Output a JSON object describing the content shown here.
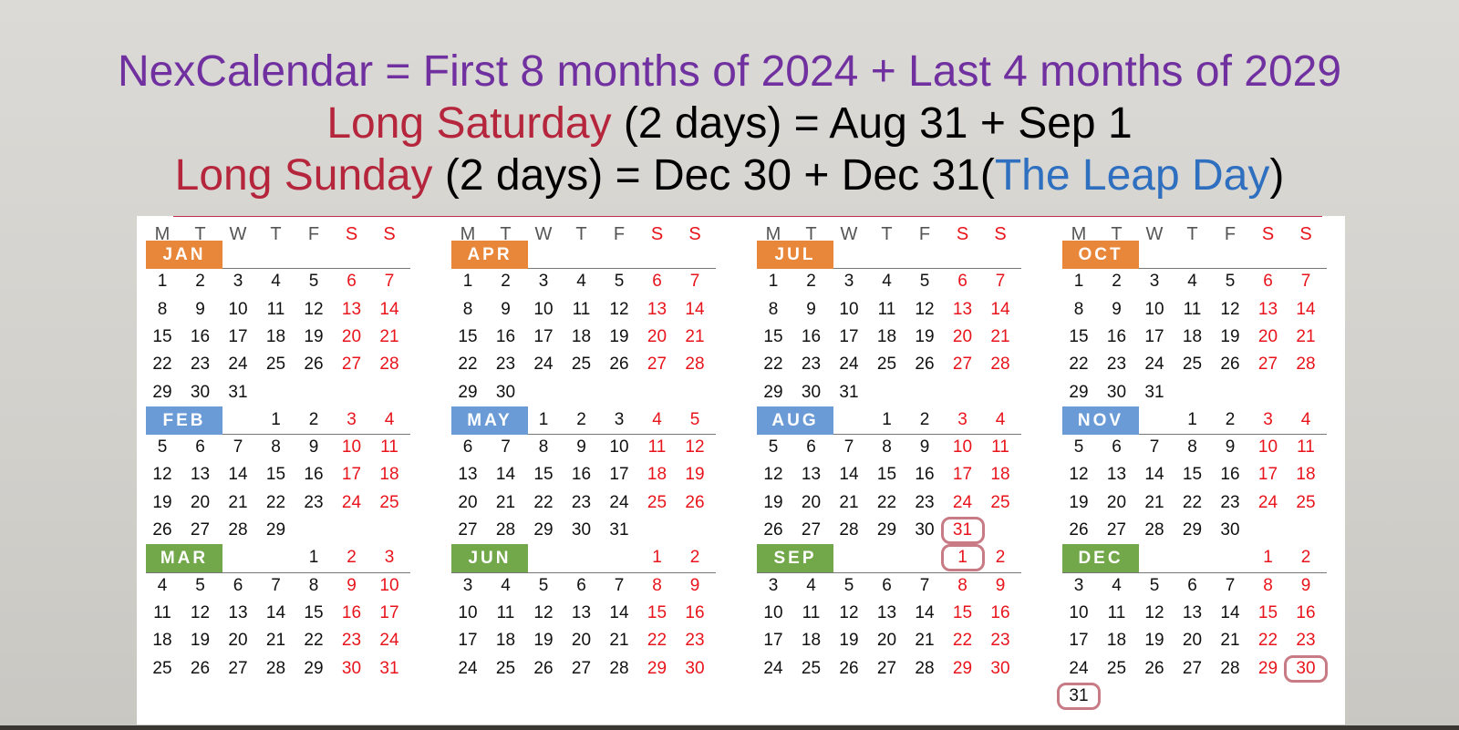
{
  "title": {
    "line1": "NexCalendar = First 8 months of 2024 + Last 4 months of 2029",
    "line2_a": "Long Saturday",
    "line2_b": " (2 days) = Aug 31 + Sep 1",
    "line3_a": "Long Sunday",
    "line3_b": " (2 days) = Dec 30 + Dec 31(",
    "line3_c": "The Leap Day",
    "line3_d": ")"
  },
  "weekday_headers": [
    "M",
    "T",
    "W",
    "T",
    "F",
    "S",
    "S"
  ],
  "colors": {
    "q1": "#e8873a",
    "q2": "#6b9bd6",
    "q3": "#72a84a",
    "weekend": "#e8141c",
    "purple": "#7030a0",
    "red": "#b5263d",
    "blue": "#2e6fc0",
    "highlight": "#c87a85"
  },
  "columns": [
    {
      "months": [
        {
          "name": "JAN",
          "color": "#e8873a",
          "start_dow": 0,
          "days": 31
        },
        {
          "name": "FEB",
          "color": "#6b9bd6",
          "start_dow": 3,
          "days": 29
        },
        {
          "name": "MAR",
          "color": "#72a84a",
          "start_dow": 4,
          "days": 31
        }
      ]
    },
    {
      "months": [
        {
          "name": "APR",
          "color": "#e8873a",
          "start_dow": 0,
          "days": 30
        },
        {
          "name": "MAY",
          "color": "#6b9bd6",
          "start_dow": 2,
          "days": 31
        },
        {
          "name": "JUN",
          "color": "#72a84a",
          "start_dow": 5,
          "days": 30
        }
      ]
    },
    {
      "months": [
        {
          "name": "JUL",
          "color": "#e8873a",
          "start_dow": 0,
          "days": 31
        },
        {
          "name": "AUG",
          "color": "#6b9bd6",
          "start_dow": 3,
          "days": 31
        },
        {
          "name": "SEP",
          "color": "#72a84a",
          "start_dow": 5,
          "days": 30
        }
      ]
    },
    {
      "months": [
        {
          "name": "OCT",
          "color": "#e8873a",
          "start_dow": 0,
          "days": 31
        },
        {
          "name": "NOV",
          "color": "#6b9bd6",
          "start_dow": 3,
          "days": 30
        },
        {
          "name": "DEC",
          "color": "#72a84a",
          "start_dow": 5,
          "days": 31,
          "extra_day_in_sunday": 31
        }
      ]
    }
  ],
  "highlighted_days": [
    {
      "month": "AUG",
      "day": 31
    },
    {
      "month": "SEP",
      "day": 1
    },
    {
      "month": "DEC",
      "day": 30
    },
    {
      "month": "DEC",
      "day": 31
    }
  ]
}
